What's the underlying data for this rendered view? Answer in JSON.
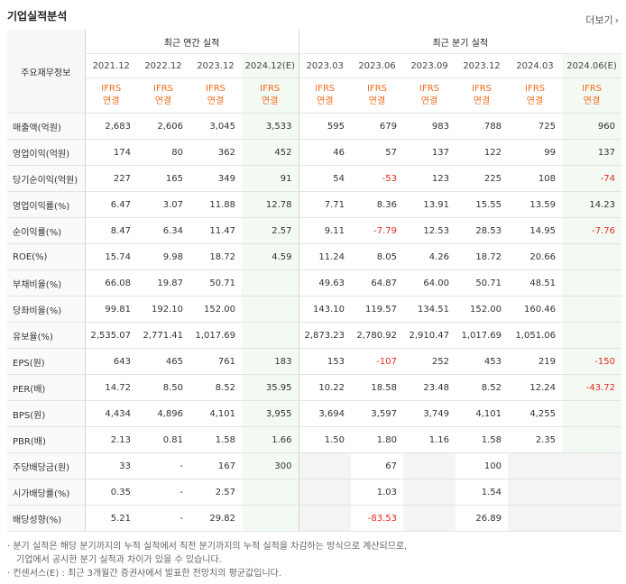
{
  "header": {
    "title": "기업실적분석",
    "more": "더보기"
  },
  "table": {
    "row_header": "주요재무정보",
    "group_annual": "최근 연간 실적",
    "group_quarter": "최근 분기 실적",
    "periods": [
      "2021.12",
      "2022.12",
      "2023.12",
      "2024.12(E)",
      "2023.03",
      "2023.06",
      "2023.09",
      "2023.12",
      "2024.03",
      "2024.06(E)"
    ],
    "ifrs_top": "IFRS",
    "ifrs_bottom": "연결",
    "rows": [
      {
        "label": "매출액(억원)",
        "values": [
          "2,683",
          "2,606",
          "3,045",
          "3,533",
          "595",
          "679",
          "983",
          "788",
          "725",
          "960"
        ]
      },
      {
        "label": "영업이익(억원)",
        "values": [
          "174",
          "80",
          "362",
          "452",
          "46",
          "57",
          "137",
          "122",
          "99",
          "137"
        ]
      },
      {
        "label": "당기순이익(억원)",
        "values": [
          "227",
          "165",
          "349",
          "91",
          "54",
          "-53",
          "123",
          "225",
          "108",
          "-74"
        ]
      },
      {
        "label": "영업이익률(%)",
        "values": [
          "6.47",
          "3.07",
          "11.88",
          "12.78",
          "7.71",
          "8.36",
          "13.91",
          "15.55",
          "13.59",
          "14.23"
        ]
      },
      {
        "label": "순이익률(%)",
        "values": [
          "8.47",
          "6.34",
          "11.47",
          "2.57",
          "9.11",
          "-7.79",
          "12.53",
          "28.53",
          "14.95",
          "-7.76"
        ]
      },
      {
        "label": "ROE(%)",
        "values": [
          "15.74",
          "9.98",
          "18.72",
          "4.59",
          "11.24",
          "8.05",
          "4.26",
          "18.72",
          "20.66",
          ""
        ]
      },
      {
        "label": "부채비율(%)",
        "values": [
          "66.08",
          "19.87",
          "50.71",
          "",
          "49.63",
          "64.87",
          "64.00",
          "50.71",
          "48.51",
          ""
        ]
      },
      {
        "label": "당좌비율(%)",
        "values": [
          "99.81",
          "192.10",
          "152.00",
          "",
          "143.10",
          "119.57",
          "134.51",
          "152.00",
          "160.46",
          ""
        ]
      },
      {
        "label": "유보율(%)",
        "values": [
          "2,535.07",
          "2,771.41",
          "1,017.69",
          "",
          "2,873.23",
          "2,780.92",
          "2,910.47",
          "1,017.69",
          "1,051.06",
          ""
        ]
      },
      {
        "label": "EPS(원)",
        "values": [
          "643",
          "465",
          "761",
          "183",
          "153",
          "-107",
          "252",
          "453",
          "219",
          "-150"
        ]
      },
      {
        "label": "PER(배)",
        "values": [
          "14.72",
          "8.50",
          "8.52",
          "35.95",
          "10.22",
          "18.58",
          "23.48",
          "8.52",
          "12.24",
          "-43.72"
        ]
      },
      {
        "label": "BPS(원)",
        "values": [
          "4,434",
          "4,896",
          "4,101",
          "3,955",
          "3,694",
          "3,597",
          "3,749",
          "4,101",
          "4,255",
          ""
        ]
      },
      {
        "label": "PBR(배)",
        "values": [
          "2.13",
          "0.81",
          "1.58",
          "1.66",
          "1.50",
          "1.80",
          "1.16",
          "1.58",
          "2.35",
          ""
        ]
      },
      {
        "label": "주당배당금(원)",
        "values": [
          "33",
          "-",
          "167",
          "300",
          "",
          "67",
          "",
          "100",
          "",
          ""
        ]
      },
      {
        "label": "시가배당률(%)",
        "values": [
          "0.35",
          "-",
          "2.57",
          "",
          "",
          "1.03",
          "",
          "1.54",
          "",
          ""
        ]
      },
      {
        "label": "배당성향(%)",
        "values": [
          "5.21",
          "-",
          "29.82",
          "",
          "",
          "-83.53",
          "",
          "26.89",
          "",
          ""
        ]
      }
    ]
  },
  "notes": [
    "· 분기 실적은 해당 분기까지의 누적 실적에서 직전 분기까지의 누적 실적을 차감하는 방식으로 계산되므로,",
    "  기업에서 공시한 분기 실적과 차이가 있을 수 있습니다.",
    "· 컨센서스(E) : 최근 3개월간 증권사에서 발표한 전망치의 평균값입니다."
  ]
}
